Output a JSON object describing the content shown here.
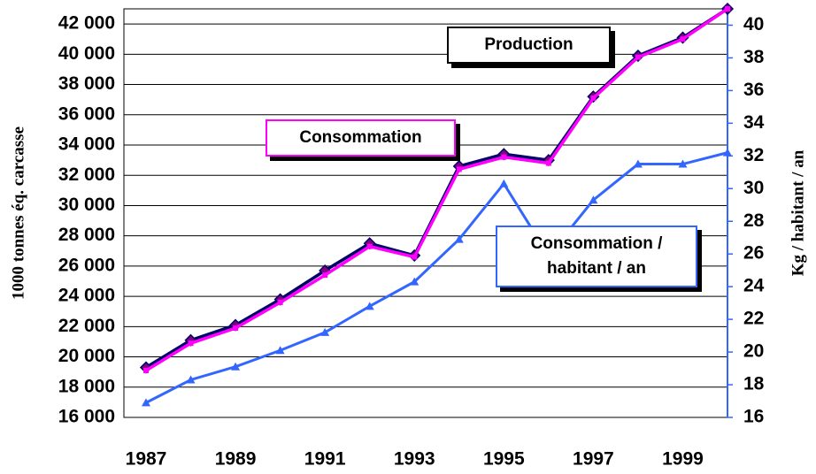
{
  "chart_data": {
    "type": "line",
    "y_label": "1000 tonnes éq. carcasse",
    "y2_label": "Kg / habitant / an",
    "x": [
      1987,
      1988,
      1989,
      1990,
      1991,
      1992,
      1993,
      1994,
      1995,
      1996,
      1997,
      1998,
      1999,
      2000
    ],
    "xlim": [
      1987,
      2000
    ],
    "xticks": [
      1987,
      1989,
      1991,
      1993,
      1995,
      1997,
      1999
    ],
    "ylim": [
      16000,
      43000
    ],
    "yticks": [
      {
        "value": 16000,
        "label": "16 000"
      },
      {
        "value": 18000,
        "label": "18 000"
      },
      {
        "value": 20000,
        "label": "20 000"
      },
      {
        "value": 22000,
        "label": "22 000"
      },
      {
        "value": 24000,
        "label": "24 000"
      },
      {
        "value": 26000,
        "label": "26 000"
      },
      {
        "value": 28000,
        "label": "28 000"
      },
      {
        "value": 30000,
        "label": "30 000"
      },
      {
        "value": 32000,
        "label": "32 000"
      },
      {
        "value": 34000,
        "label": "34 000"
      },
      {
        "value": 36000,
        "label": "36 000"
      },
      {
        "value": 38000,
        "label": "38 000"
      },
      {
        "value": 40000,
        "label": "40 000"
      },
      {
        "value": 42000,
        "label": "42 000"
      }
    ],
    "y2lim": [
      16,
      41
    ],
    "y2ticks": [
      16,
      18,
      20,
      22,
      24,
      26,
      28,
      30,
      32,
      34,
      36,
      38,
      40
    ],
    "grid": true,
    "series": [
      {
        "name": "Production",
        "color": "#000066",
        "marker_color": "#800080",
        "values": [
          19300,
          21100,
          22100,
          23800,
          25700,
          27500,
          26700,
          32600,
          33400,
          33000,
          37200,
          39900,
          41100,
          43000
        ]
      },
      {
        "name": "Consommation",
        "color": "#ff00ff",
        "marker_color": "#ff00ff",
        "values": [
          19100,
          20900,
          21900,
          23600,
          25400,
          27300,
          26600,
          32400,
          33200,
          32800,
          37100,
          39800,
          41000,
          43000
        ]
      },
      {
        "name": "Consommation / habitant / an",
        "color": "#3366ff",
        "marker_color": "#3366ff",
        "axis": "y2",
        "values": [
          16.9,
          18.3,
          19.1,
          20.1,
          21.2,
          22.8,
          24.3,
          26.9,
          30.3,
          25.9,
          29.3,
          31.5,
          31.5,
          32.2
        ]
      }
    ]
  }
}
